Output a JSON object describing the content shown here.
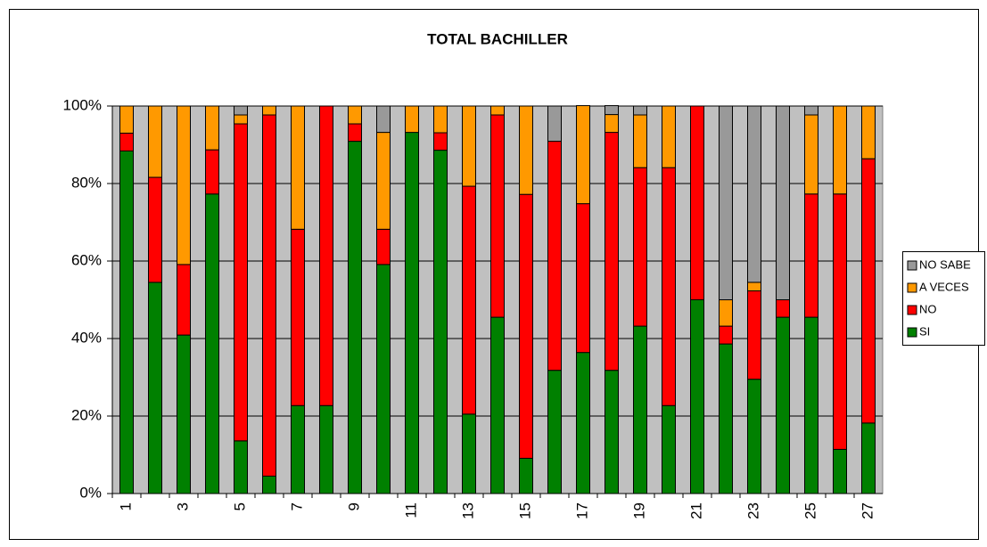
{
  "chart_data": {
    "type": "stacked_bar_100",
    "title": "TOTAL BACHILLER",
    "categories": [
      "1",
      null,
      "3",
      null,
      "5",
      null,
      "7",
      null,
      "9",
      null,
      "11",
      null,
      "13",
      null,
      "15",
      null,
      "17",
      null,
      "19",
      null,
      "21",
      null,
      "23",
      null,
      "25",
      null,
      "27"
    ],
    "series": [
      {
        "name": "SI",
        "color": "#008000",
        "values": [
          88.4,
          54.5,
          40.9,
          77.3,
          13.6,
          4.5,
          22.7,
          22.7,
          90.9,
          59.1,
          93.2,
          88.6,
          20.5,
          45.5,
          9.1,
          31.8,
          36.4,
          31.8,
          43.2,
          22.7,
          50,
          38.6,
          29.5,
          45.5,
          45.5,
          11.4,
          18.2
        ]
      },
      {
        "name": "NO",
        "color": "#ff0000",
        "values": [
          4.6,
          27.1,
          18.2,
          11.4,
          81.8,
          93.2,
          45.5,
          77.3,
          4.5,
          9.1,
          0,
          4.5,
          58.8,
          52.2,
          68.1,
          59.1,
          38.4,
          61.4,
          40.9,
          61.4,
          50,
          4.6,
          22.8,
          4.5,
          31.8,
          65.9,
          68.2
        ]
      },
      {
        "name": "A VECES",
        "color": "#ff9900",
        "values": [
          7,
          18.4,
          40.9,
          11.3,
          2.3,
          2.3,
          31.8,
          0,
          4.6,
          25,
          6.8,
          6.9,
          20.7,
          2.3,
          22.8,
          0,
          25.3,
          4.6,
          13.6,
          15.9,
          0,
          6.8,
          2.2,
          0,
          20.4,
          22.7,
          13.6
        ]
      },
      {
        "name": "NO SABE",
        "color": "#999999",
        "values": [
          0,
          0,
          0,
          0,
          2.3,
          0,
          0,
          0,
          0,
          6.8,
          0,
          0,
          0,
          0,
          0,
          9.1,
          0,
          2.3,
          2.3,
          0,
          0,
          50,
          45.5,
          50,
          2.3,
          0,
          0
        ]
      }
    ],
    "ylim": [
      0,
      100
    ],
    "yticks": [
      {
        "value": 0,
        "label": "0%"
      },
      {
        "value": 20,
        "label": "20%"
      },
      {
        "value": 40,
        "label": "40%"
      },
      {
        "value": 60,
        "label": "60%"
      },
      {
        "value": 80,
        "label": "80%"
      },
      {
        "value": 100,
        "label": "100%"
      }
    ],
    "grid": true,
    "legend": "right",
    "background": "#c0c0c0"
  }
}
